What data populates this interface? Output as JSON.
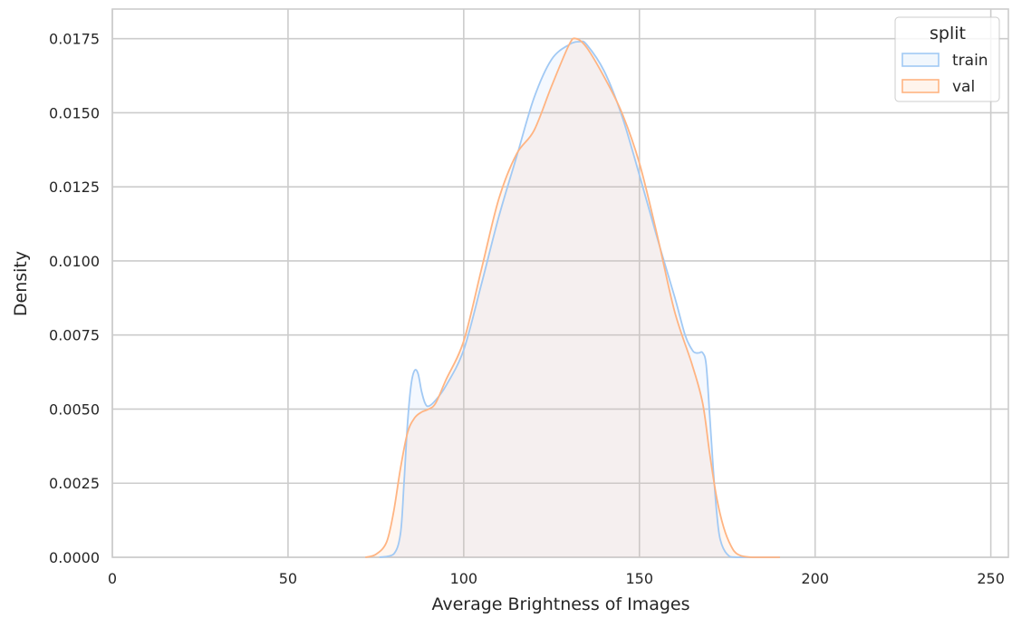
{
  "chart_data": {
    "type": "area",
    "title": "",
    "xlabel": "Average Brightness of Images",
    "ylabel": "Density",
    "xlim": [
      0,
      255
    ],
    "ylim": [
      0,
      0.0185
    ],
    "x_ticks": [
      0,
      50,
      100,
      150,
      200,
      250
    ],
    "y_ticks": [
      0.0,
      0.0025,
      0.005,
      0.0075,
      0.01,
      0.0125,
      0.015,
      0.0175
    ],
    "y_tick_labels": [
      "0.0000",
      "0.0025",
      "0.0050",
      "0.0075",
      "0.0100",
      "0.0125",
      "0.0150",
      "0.0175"
    ],
    "grid": true,
    "legend": {
      "title": "split",
      "position": "top-right"
    },
    "series": [
      {
        "name": "train",
        "color": "#a1c9f4",
        "points": [
          [
            76,
            0.0
          ],
          [
            80,
            0.0001
          ],
          [
            82,
            0.0008
          ],
          [
            83,
            0.0025
          ],
          [
            84,
            0.0045
          ],
          [
            85,
            0.0058
          ],
          [
            86,
            0.0063
          ],
          [
            87,
            0.0062
          ],
          [
            88,
            0.0056
          ],
          [
            89,
            0.0052
          ],
          [
            90,
            0.0051
          ],
          [
            92,
            0.0053
          ],
          [
            95,
            0.0058
          ],
          [
            100,
            0.007
          ],
          [
            105,
            0.0092
          ],
          [
            110,
            0.0115
          ],
          [
            115,
            0.0135
          ],
          [
            120,
            0.0155
          ],
          [
            125,
            0.0168
          ],
          [
            130,
            0.0173
          ],
          [
            133,
            0.0174
          ],
          [
            135,
            0.0173
          ],
          [
            140,
            0.0164
          ],
          [
            145,
            0.0149
          ],
          [
            150,
            0.0129
          ],
          [
            155,
            0.0108
          ],
          [
            160,
            0.0088
          ],
          [
            163,
            0.0075
          ],
          [
            165,
            0.007
          ],
          [
            166,
            0.0069
          ],
          [
            167,
            0.0069
          ],
          [
            168,
            0.0069
          ],
          [
            169,
            0.0065
          ],
          [
            170,
            0.0048
          ],
          [
            171,
            0.003
          ],
          [
            172,
            0.0015
          ],
          [
            173,
            0.0006
          ],
          [
            175,
            0.0001
          ],
          [
            178,
            0.0
          ],
          [
            190,
            0.0
          ]
        ]
      },
      {
        "name": "val",
        "color": "#ffb482",
        "points": [
          [
            72,
            0.0
          ],
          [
            75,
            0.0001
          ],
          [
            78,
            0.0005
          ],
          [
            80,
            0.0015
          ],
          [
            82,
            0.003
          ],
          [
            84,
            0.0042
          ],
          [
            86,
            0.0047
          ],
          [
            88,
            0.0049
          ],
          [
            90,
            0.005
          ],
          [
            92,
            0.0052
          ],
          [
            95,
            0.006
          ],
          [
            100,
            0.0073
          ],
          [
            105,
            0.0097
          ],
          [
            110,
            0.0121
          ],
          [
            115,
            0.0136
          ],
          [
            120,
            0.0144
          ],
          [
            125,
            0.0159
          ],
          [
            130,
            0.0173
          ],
          [
            132,
            0.0175
          ],
          [
            135,
            0.0172
          ],
          [
            140,
            0.0162
          ],
          [
            145,
            0.015
          ],
          [
            150,
            0.0133
          ],
          [
            155,
            0.0109
          ],
          [
            160,
            0.0083
          ],
          [
            165,
            0.0065
          ],
          [
            168,
            0.0052
          ],
          [
            170,
            0.0035
          ],
          [
            172,
            0.002
          ],
          [
            174,
            0.001
          ],
          [
            176,
            0.0004
          ],
          [
            178,
            0.0001
          ],
          [
            182,
            0.0
          ],
          [
            190,
            0.0
          ]
        ]
      }
    ]
  }
}
